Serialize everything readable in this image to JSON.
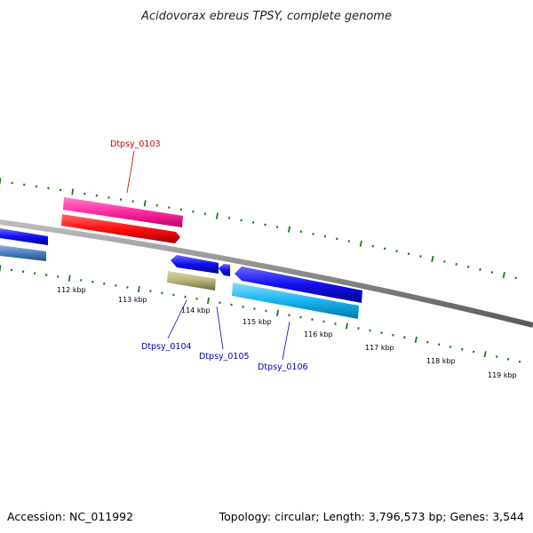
{
  "title": "Acidovorax ebreus TPSY, complete genome",
  "footer": {
    "accession": "Accession: NC_011992",
    "topology": "Topology: circular; Length: 3,796,573 bp; Genes: 3,544"
  },
  "scale_labels": [
    "112 kbp",
    "113 kbp",
    "114 kbp",
    "115 kbp",
    "116 kbp",
    "117 kbp",
    "118 kbp",
    "119 kbp"
  ],
  "gene_labels": [
    {
      "name": "Dtpsy_0103",
      "color": "#cc0000"
    },
    {
      "name": "Dtpsy_0104",
      "color": "#0000bb"
    },
    {
      "name": "Dtpsy_0105",
      "color": "#0000bb"
    },
    {
      "name": "Dtpsy_0106",
      "color": "#0000bb"
    }
  ],
  "colors": {
    "backbone": "#8a8a8a",
    "ticks": "#1a7a1a",
    "pink": "#ff3aa8",
    "red": "#ff1a1a",
    "blue": "#1010ee",
    "steelblue": "#4a7ec0",
    "olive": "#b8b47a",
    "cyan": "#1ab4ee"
  }
}
